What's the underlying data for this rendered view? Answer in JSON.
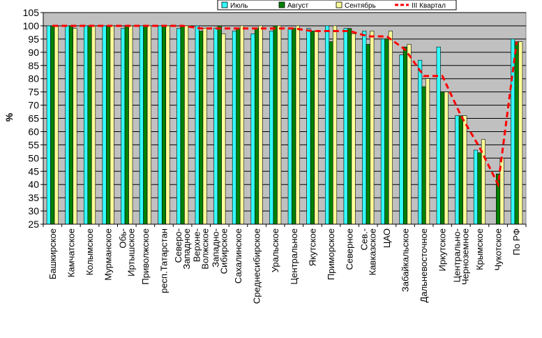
{
  "chart_data": {
    "type": "bar",
    "ylabel": "%",
    "ylim": [
      25,
      105
    ],
    "yticks": [
      25,
      30,
      35,
      40,
      45,
      50,
      55,
      60,
      65,
      70,
      75,
      80,
      85,
      90,
      95,
      100,
      105
    ],
    "grid": "horizontal",
    "legend_position": "top-right",
    "categories": [
      "Башкирское",
      "Камчатское",
      "Колымское",
      "Мурманское",
      "Обь-Иртышское",
      "Приволжское",
      "респ.Татарстан",
      "Северо-Западное",
      "Верхне-Волжское",
      "Западно-Сибирское",
      "Сахалинское",
      "Среднесибирское",
      "Уральское",
      "Центральное",
      "Якутское",
      "Приморское",
      "Северное",
      "Сев.-Кавказское",
      "ЦАО",
      "Забайкальское",
      "Дальневосточное",
      "Иркутское",
      "Центрально-Черноземное",
      "Крымское",
      "Чукотское",
      "По РФ"
    ],
    "category_lines": [
      [
        "Башкирское"
      ],
      [
        "Камчатское"
      ],
      [
        "Колымское"
      ],
      [
        "Мурманское"
      ],
      [
        "Обь-",
        "Иртышское"
      ],
      [
        "Приволжское"
      ],
      [
        "респ.Татарстан"
      ],
      [
        "Северо-",
        "Западное"
      ],
      [
        "Верхне-",
        "Волжское"
      ],
      [
        "Западно-",
        "Сибирское"
      ],
      [
        "Сахалинское"
      ],
      [
        "Среднесибирское"
      ],
      [
        "Уральское"
      ],
      [
        "Центральное"
      ],
      [
        "Якутское"
      ],
      [
        "Приморское"
      ],
      [
        "Северное"
      ],
      [
        "Сев.-",
        "Кавказское"
      ],
      [
        "ЦАО"
      ],
      [
        "Забайкальское"
      ],
      [
        "Дальневосточное"
      ],
      [
        "Иркутское"
      ],
      [
        "Центрально-",
        "Черноземное"
      ],
      [
        "Крымское"
      ],
      [
        "Чукотское"
      ],
      [
        "По РФ"
      ]
    ],
    "series": [
      {
        "name": "Июль",
        "kind": "bar",
        "color": "#33ffff",
        "values": [
          100,
          100,
          100,
          100,
          99,
          100,
          100,
          99,
          100,
          99,
          98,
          97,
          98,
          99,
          99,
          100,
          99,
          98,
          95,
          89,
          87,
          92,
          66,
          53,
          25,
          95
        ]
      },
      {
        "name": "Август",
        "kind": "bar",
        "color": "#008000",
        "values": [
          100,
          100,
          100,
          100,
          100,
          100,
          100,
          100,
          98,
          100,
          99,
          99,
          100,
          99,
          98,
          94,
          99,
          93,
          95,
          92,
          77,
          75,
          66,
          52,
          44,
          94
        ]
      },
      {
        "name": "Сентябрь",
        "kind": "bar",
        "color": "#ffff99",
        "values": [
          100,
          99,
          100,
          100,
          100,
          100,
          100,
          100,
          99,
          97,
          100,
          100,
          100,
          100,
          98,
          100,
          97,
          98,
          98,
          93,
          80,
          75,
          66,
          57,
          50,
          94
        ]
      },
      {
        "name": "III Квартал",
        "kind": "line",
        "color": "#ff0000",
        "values": [
          100,
          100,
          100,
          100,
          100,
          100,
          100,
          100,
          99,
          99,
          99,
          99,
          99,
          99,
          98,
          98,
          98,
          96,
          96,
          91,
          81,
          81,
          66,
          54,
          40,
          94
        ]
      }
    ]
  }
}
